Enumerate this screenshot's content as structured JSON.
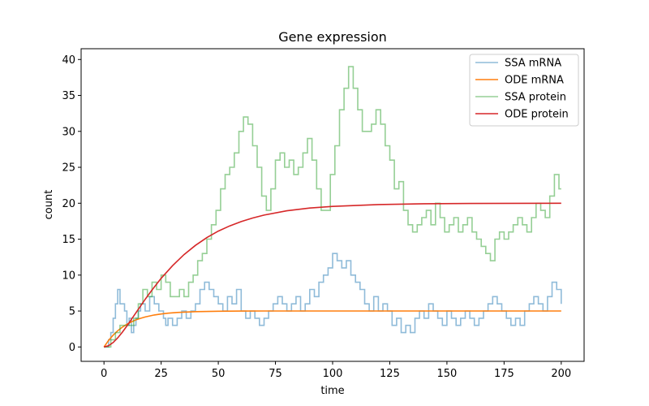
{
  "chart_data": {
    "type": "line",
    "title": "Gene expression",
    "xlabel": "time",
    "ylabel": "count",
    "xlim": [
      -10,
      210
    ],
    "ylim": [
      -2,
      41.5
    ],
    "xticks": [
      0,
      25,
      50,
      75,
      100,
      125,
      150,
      175,
      200
    ],
    "yticks": [
      0,
      5,
      10,
      15,
      20,
      25,
      30,
      35,
      40
    ],
    "grid": false,
    "legend_position": "top-right",
    "series": [
      {
        "name": "SSA mRNA",
        "style": "step",
        "color": "#1f77b4",
        "alpha": 0.5,
        "x": [
          0,
          2,
          3,
          4,
          5,
          6,
          7,
          9,
          10,
          11,
          12,
          13,
          14,
          15,
          16,
          18,
          20,
          22,
          24,
          26,
          27,
          28,
          30,
          32,
          34,
          36,
          38,
          40,
          42,
          44,
          46,
          48,
          50,
          52,
          54,
          56,
          58,
          60,
          62,
          64,
          66,
          68,
          70,
          72,
          74,
          76,
          78,
          80,
          82,
          84,
          86,
          88,
          90,
          92,
          94,
          96,
          98,
          100,
          102,
          104,
          106,
          108,
          110,
          112,
          114,
          116,
          118,
          120,
          122,
          124,
          126,
          128,
          130,
          132,
          134,
          136,
          138,
          140,
          142,
          144,
          146,
          148,
          150,
          152,
          154,
          156,
          158,
          160,
          162,
          164,
          166,
          168,
          170,
          172,
          174,
          176,
          178,
          180,
          182,
          184,
          186,
          188,
          190,
          192,
          194,
          196,
          198,
          200
        ],
        "values": [
          0,
          1,
          2,
          4,
          6,
          8,
          6,
          5,
          3,
          4,
          2,
          3,
          4,
          5,
          6,
          5,
          7,
          6,
          5,
          4,
          3,
          4,
          3,
          4,
          5,
          4,
          5,
          6,
          8,
          9,
          8,
          7,
          6,
          5,
          7,
          6,
          8,
          5,
          4,
          5,
          4,
          3,
          4,
          5,
          6,
          7,
          6,
          5,
          6,
          7,
          5,
          6,
          8,
          7,
          9,
          10,
          11,
          13,
          12,
          11,
          12,
          10,
          9,
          8,
          6,
          5,
          7,
          5,
          6,
          5,
          3,
          4,
          2,
          3,
          2,
          4,
          5,
          4,
          6,
          5,
          4,
          3,
          5,
          4,
          3,
          4,
          5,
          4,
          3,
          4,
          5,
          6,
          7,
          6,
          5,
          4,
          3,
          4,
          3,
          5,
          6,
          7,
          6,
          5,
          7,
          9,
          8,
          6
        ],
        "end_x": 200
      },
      {
        "name": "ODE mRNA",
        "style": "line",
        "color": "#ff7f0e",
        "alpha": 1.0,
        "x": [
          0,
          2,
          4,
          6,
          8,
          10,
          12,
          14,
          16,
          18,
          20,
          22,
          25,
          28,
          32,
          36,
          40,
          45,
          50,
          60,
          70,
          80,
          100,
          125,
          150,
          175,
          200
        ],
        "values": [
          0,
          0.91,
          1.65,
          2.26,
          2.75,
          3.16,
          3.49,
          3.77,
          3.99,
          4.17,
          4.32,
          4.45,
          4.59,
          4.7,
          4.8,
          4.86,
          4.91,
          4.94,
          4.97,
          4.99,
          5.0,
          5.0,
          5.0,
          5.0,
          5.0,
          5.0,
          5.0
        ]
      },
      {
        "name": "SSA protein",
        "style": "step",
        "color": "#2ca02c",
        "alpha": 0.5,
        "x": [
          0,
          3,
          5,
          7,
          9,
          11,
          13,
          15,
          17,
          19,
          21,
          23,
          25,
          27,
          29,
          31,
          33,
          35,
          37,
          39,
          41,
          43,
          45,
          47,
          49,
          51,
          53,
          55,
          57,
          59,
          61,
          63,
          65,
          67,
          69,
          71,
          73,
          75,
          77,
          79,
          81,
          83,
          85,
          87,
          89,
          91,
          93,
          95,
          97,
          99,
          101,
          103,
          105,
          107,
          109,
          111,
          113,
          115,
          117,
          119,
          121,
          123,
          125,
          127,
          129,
          131,
          133,
          135,
          137,
          139,
          141,
          143,
          145,
          147,
          149,
          151,
          153,
          155,
          157,
          159,
          161,
          163,
          165,
          167,
          169,
          171,
          173,
          175,
          177,
          179,
          181,
          183,
          185,
          187,
          189,
          191,
          193,
          195,
          197,
          199
        ],
        "values": [
          0,
          1,
          2,
          3,
          3,
          3,
          4,
          6,
          8,
          7,
          9,
          8,
          10,
          9,
          7,
          7,
          8,
          7,
          9,
          10,
          12,
          13,
          15,
          17,
          19,
          22,
          24,
          25,
          27,
          30,
          32,
          31,
          28,
          25,
          21,
          19,
          22,
          26,
          27,
          25,
          26,
          24,
          25,
          27,
          29,
          26,
          22,
          19,
          19,
          24,
          28,
          33,
          36,
          39,
          36,
          33,
          30,
          30,
          31,
          33,
          31,
          28,
          26,
          22,
          23,
          19,
          17,
          16,
          17,
          18,
          19,
          17,
          20,
          18,
          16,
          17,
          18,
          16,
          17,
          18,
          16,
          15,
          14,
          13,
          12,
          15,
          16,
          15,
          16,
          17,
          18,
          17,
          16,
          18,
          20,
          19,
          18,
          21,
          24,
          22
        ],
        "end_x": 200
      },
      {
        "name": "ODE protein",
        "style": "line",
        "color": "#d62728",
        "alpha": 1.0,
        "x": [
          0,
          2,
          4,
          6,
          8,
          10,
          12,
          15,
          18,
          21,
          25,
          30,
          35,
          40,
          45,
          50,
          55,
          60,
          65,
          70,
          80,
          90,
          100,
          120,
          140,
          160,
          180,
          200
        ],
        "values": [
          0,
          0.17,
          0.62,
          1.27,
          2.05,
          2.92,
          3.84,
          5.24,
          6.62,
          7.93,
          9.55,
          11.31,
          12.85,
          14.14,
          15.22,
          16.12,
          16.85,
          17.45,
          17.94,
          18.35,
          18.95,
          19.33,
          19.56,
          19.82,
          19.93,
          19.97,
          19.99,
          20.0
        ]
      }
    ]
  }
}
